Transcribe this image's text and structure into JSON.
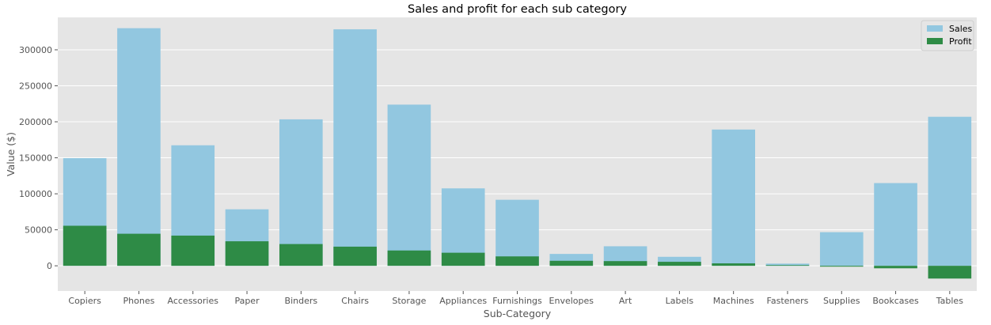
{
  "chart_data": {
    "type": "bar",
    "title": "Sales and profit for each sub category",
    "xlabel": "Sub-Category",
    "ylabel": "Value ($)",
    "categories": [
      "Copiers",
      "Phones",
      "Accessories",
      "Paper",
      "Binders",
      "Chairs",
      "Storage",
      "Appliances",
      "Furnishings",
      "Envelopes",
      "Art",
      "Labels",
      "Machines",
      "Fasteners",
      "Supplies",
      "Bookcases",
      "Tables"
    ],
    "series": [
      {
        "name": "Sales",
        "color": "#92c7e0",
        "values": [
          149528,
          330007,
          167380,
          78479,
          203413,
          328449,
          223844,
          107532,
          91705,
          16476,
          27119,
          12486,
          189239,
          3024,
          46674,
          114880,
          206966
        ]
      },
      {
        "name": "Profit",
        "color": "#2e8b46",
        "values": [
          55618,
          44516,
          41937,
          34054,
          30222,
          26590,
          21279,
          18138,
          13059,
          6964,
          6528,
          5546,
          3385,
          950,
          -1189,
          -3473,
          -17725
        ]
      }
    ],
    "ylim": [
      -35000,
      345000
    ],
    "yticks": [
      0,
      50000,
      100000,
      150000,
      200000,
      250000,
      300000
    ],
    "ytick_labels": [
      "0",
      "50000",
      "100000",
      "150000",
      "200000",
      "250000",
      "300000"
    ],
    "grid": true,
    "legend_position": "top-right"
  }
}
